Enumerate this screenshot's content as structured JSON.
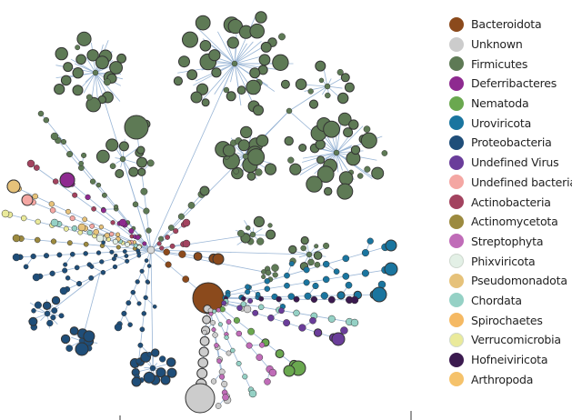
{
  "legend": {
    "items": [
      {
        "label": "Bacteroidota",
        "color": "#8b4a1c"
      },
      {
        "label": "Unknown",
        "color": "#cccccc"
      },
      {
        "label": "Firmicutes",
        "color": "#5e7a55"
      },
      {
        "label": "Deferribacteres",
        "color": "#8e2a90"
      },
      {
        "label": "Nematoda",
        "color": "#6aa84f"
      },
      {
        "label": "Uroviricota",
        "color": "#1a759f"
      },
      {
        "label": "Proteobacteria",
        "color": "#1f4e79"
      },
      {
        "label": "Undefined Virus",
        "color": "#6a3d9a"
      },
      {
        "label": "Undefined bacteria",
        "color": "#f4a7a3"
      },
      {
        "label": "Actinobacteria",
        "color": "#a3435f"
      },
      {
        "label": "Actinomycetota",
        "color": "#9c8a3f"
      },
      {
        "label": "Streptophyta",
        "color": "#c06cb8"
      },
      {
        "label": "Phixviricota",
        "color": "#e3f0e6"
      },
      {
        "label": "Pseudomonadota",
        "color": "#e6c27a"
      },
      {
        "label": "Chordata",
        "color": "#95d1c5"
      },
      {
        "label": "Spirochaetes",
        "color": "#f5b963"
      },
      {
        "label": "Verrucomicrobia",
        "color": "#eaea9a"
      },
      {
        "label": "Hofneiviricota",
        "color": "#3b1a4f"
      },
      {
        "label": "Arthropoda",
        "color": "#f5c26b"
      }
    ]
  },
  "network": {
    "edge_color": "#9ab6d6",
    "node_stroke": "#333333"
  }
}
